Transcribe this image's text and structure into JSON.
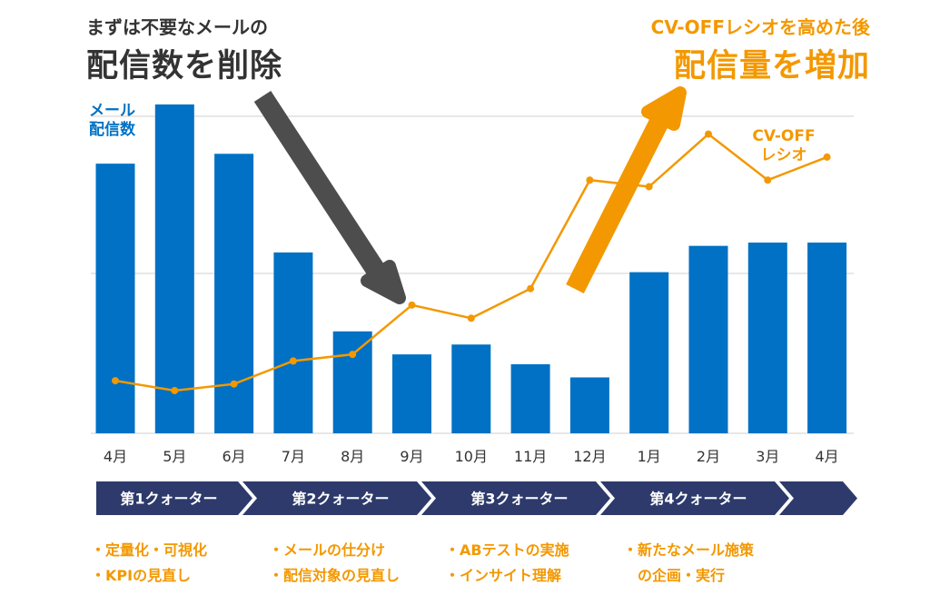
{
  "headline_left": {
    "sub": "まずは不要なメールの",
    "main": "配信数を削除"
  },
  "headline_right": {
    "sub": "CV-OFFレシオを高めた後",
    "main": "配信量を増加"
  },
  "chart_data": {
    "type": "bar",
    "title": "",
    "xlabel": "",
    "ylabel": "",
    "categories": [
      "4月",
      "5月",
      "6月",
      "7月",
      "8月",
      "9月",
      "10月",
      "11月",
      "12月",
      "1月",
      "2月",
      "3月",
      "4月"
    ],
    "ylim": [
      0,
      100
    ],
    "grid": true,
    "series": [
      {
        "name": "メール配信数",
        "type": "bar",
        "color": "#0071c4",
        "values": [
          82,
          100,
          85,
          55,
          31,
          24,
          27,
          21,
          17,
          49,
          57,
          58,
          58
        ]
      },
      {
        "name": "CV-OFFレシオ",
        "type": "line",
        "color": "#f39800",
        "values": [
          16,
          13,
          15,
          22,
          24,
          39,
          35,
          44,
          77,
          75,
          91,
          77,
          84
        ]
      }
    ],
    "legend": {
      "bar_label": [
        "メール",
        "配信数"
      ],
      "line_label": [
        "CV-OFF",
        "レシオ"
      ]
    },
    "arrows": [
      {
        "direction": "down",
        "color": "#4d4d4d"
      },
      {
        "direction": "up",
        "color": "#f39800"
      }
    ]
  },
  "quarters": {
    "color": "#2d3a6b",
    "labels": [
      "第1クォーター",
      "第2クォーター",
      "第3クォーター",
      "第4クォーター"
    ]
  },
  "actions": [
    {
      "items": [
        "・定量化・可視化",
        "・KPIの見直し"
      ]
    },
    {
      "items": [
        "・メールの仕分け",
        "・配信対象の見直し"
      ]
    },
    {
      "items": [
        "・ABテストの実施",
        "・インサイト理解"
      ]
    },
    {
      "items": [
        "・新たなメール施策",
        "の企画・実行"
      ]
    }
  ]
}
